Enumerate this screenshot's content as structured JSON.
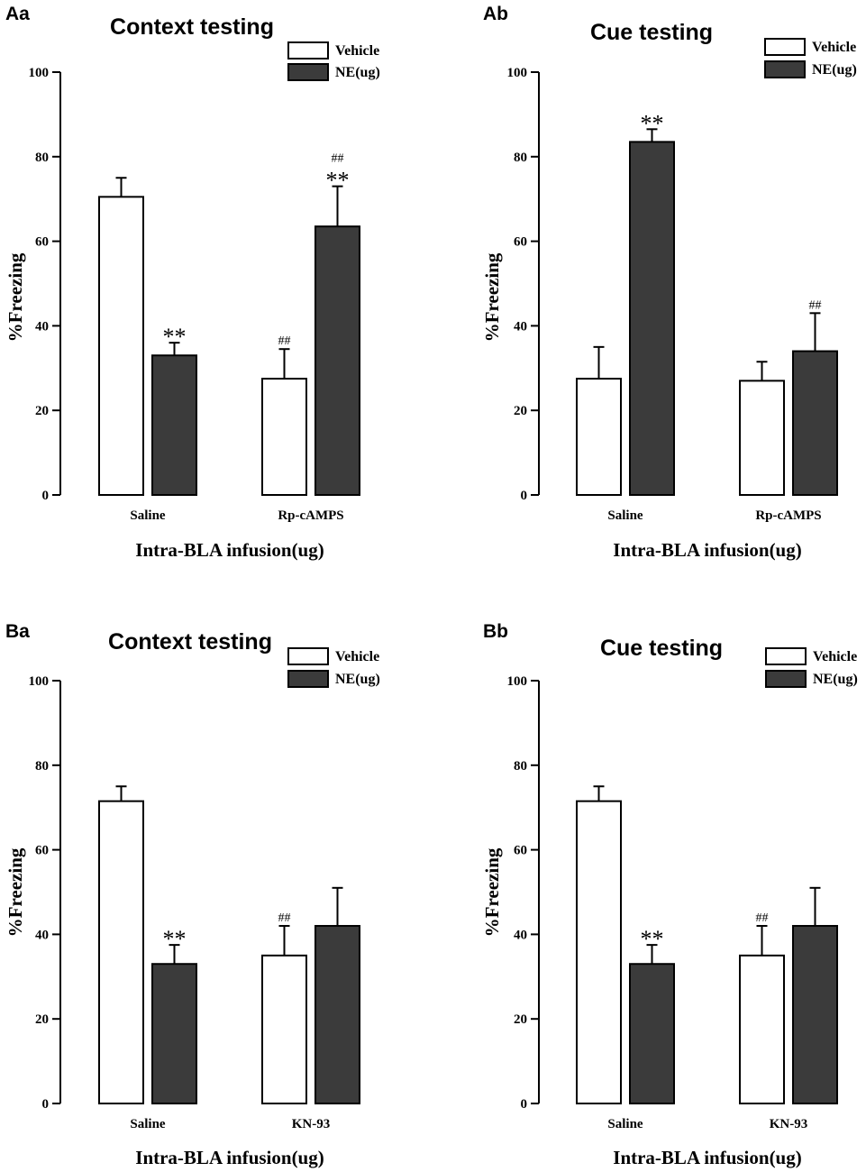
{
  "colors": {
    "vehicle": "#ffffff",
    "ne": "#3b3b3b",
    "stroke": "#000000"
  },
  "chart_data": [
    {
      "panel": "Aa",
      "type": "bar",
      "title": "Context testing",
      "xlabel": "Intra-BLA infusion(ug)",
      "ylabel": "%Freezing",
      "ylim": [
        0,
        100
      ],
      "yticks": [
        "0",
        "20",
        "40",
        "60",
        "80",
        "100"
      ],
      "legend": [
        "Vehicle",
        "NE(ug)"
      ],
      "categories": [
        "Saline",
        "Rp-cAMPS"
      ],
      "series": [
        {
          "name": "Vehicle",
          "values": [
            70.5,
            27.5
          ],
          "errors": [
            4.5,
            7.0
          ],
          "stars": [
            "",
            ""
          ],
          "hashes": [
            "",
            "##"
          ]
        },
        {
          "name": "NE(ug)",
          "values": [
            33,
            63.5
          ],
          "errors": [
            3.0,
            9.5
          ],
          "stars": [
            "**",
            "**"
          ],
          "hashes": [
            "",
            "##"
          ]
        }
      ]
    },
    {
      "panel": "Ab",
      "type": "bar",
      "title": "Cue testing",
      "xlabel": "Intra-BLA infusion(ug)",
      "ylabel": "%Freezing",
      "ylim": [
        0,
        100
      ],
      "yticks": [
        "0",
        "20",
        "40",
        "60",
        "80",
        "100"
      ],
      "legend": [
        "Vehicle",
        "NE(ug)"
      ],
      "categories": [
        "Saline",
        "Rp-cAMPS"
      ],
      "series": [
        {
          "name": "Vehicle",
          "values": [
            27.5,
            27
          ],
          "errors": [
            7.5,
            4.5
          ],
          "stars": [
            "",
            ""
          ],
          "hashes": [
            "",
            ""
          ]
        },
        {
          "name": "NE(ug)",
          "values": [
            83.5,
            34
          ],
          "errors": [
            3.0,
            9.0
          ],
          "stars": [
            "**",
            ""
          ],
          "hashes": [
            "",
            "##"
          ]
        }
      ]
    },
    {
      "panel": "Ba",
      "type": "bar",
      "title": "Context testing",
      "xlabel": "Intra-BLA infusion(ug)",
      "ylabel": "%Freezing",
      "ylim": [
        0,
        100
      ],
      "yticks": [
        "0",
        "20",
        "40",
        "60",
        "80",
        "100"
      ],
      "legend": [
        "Vehicle",
        "NE(ug)"
      ],
      "categories": [
        "Saline",
        "KN-93"
      ],
      "series": [
        {
          "name": "Vehicle",
          "values": [
            71.5,
            35
          ],
          "errors": [
            3.5,
            7.0
          ],
          "stars": [
            "",
            ""
          ],
          "hashes": [
            "",
            "##"
          ]
        },
        {
          "name": "NE(ug)",
          "values": [
            33,
            42
          ],
          "errors": [
            4.5,
            9.0
          ],
          "stars": [
            "**",
            ""
          ],
          "hashes": [
            "",
            ""
          ]
        }
      ]
    },
    {
      "panel": "Bb",
      "type": "bar",
      "title": "Cue testing",
      "xlabel": "Intra-BLA infusion(ug)",
      "ylabel": "%Freezing",
      "ylim": [
        0,
        100
      ],
      "yticks": [
        "0",
        "20",
        "40",
        "60",
        "80",
        "100"
      ],
      "legend": [
        "Vehicle",
        "NE(ug)"
      ],
      "categories": [
        "Saline",
        "KN-93"
      ],
      "series": [
        {
          "name": "Vehicle",
          "values": [
            71.5,
            35
          ],
          "errors": [
            3.5,
            7.0
          ],
          "stars": [
            "",
            ""
          ],
          "hashes": [
            "",
            "##"
          ]
        },
        {
          "name": "NE(ug)",
          "values": [
            33,
            42
          ],
          "errors": [
            4.5,
            9.0
          ],
          "stars": [
            "**",
            ""
          ],
          "hashes": [
            "",
            ""
          ]
        }
      ]
    }
  ]
}
